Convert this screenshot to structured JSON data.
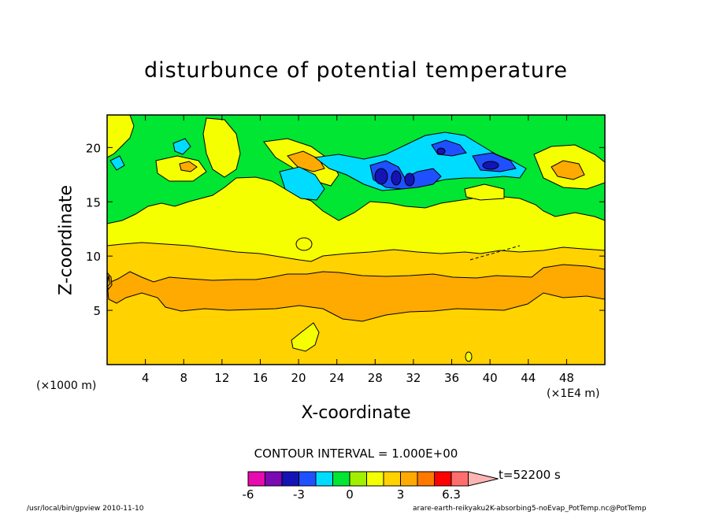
{
  "chart_data": {
    "type": "heatmap",
    "title": "disturbunce of potential temperature",
    "xlabel": "X-coordinate",
    "ylabel": "Z-coordinate",
    "x_unit_left": "(×1000 m)",
    "x_unit_right": "(×1E4 m)",
    "xlim": [
      0,
      52
    ],
    "ylim": [
      0,
      23
    ],
    "x_ticks": [
      4,
      8,
      12,
      16,
      20,
      24,
      28,
      32,
      36,
      40,
      44,
      48
    ],
    "y_ticks": [
      5,
      10,
      15,
      20
    ],
    "contour_interval": "CONTOUR INTERVAL = 1.000E+00",
    "time_label": "t=52200 s",
    "colorbar": {
      "labels": [
        "-6",
        "-3",
        "0",
        "3",
        "6.3"
      ],
      "colors": [
        "#e60aaf",
        "#7a0ab4",
        "#1414b4",
        "#1e50ff",
        "#00dcff",
        "#00e632",
        "#a0f000",
        "#f5ff00",
        "#ffd200",
        "#ffaa00",
        "#ff7800",
        "#ff0000",
        "#ff6e6e",
        "#ffb4b4"
      ]
    },
    "layers": [
      {
        "name": "background",
        "color": "#ffd200"
      },
      {
        "name": "orange band",
        "color": "#ffaa00"
      },
      {
        "name": "yellow band",
        "color": "#f5ff00"
      },
      {
        "name": "green upper",
        "color": "#00e632"
      },
      {
        "name": "cyan blobs",
        "color": "#00dcff"
      },
      {
        "name": "blue blobs",
        "color": "#1e50ff"
      },
      {
        "name": "dark blue blobs",
        "color": "#1414b4"
      }
    ],
    "grid": false
  },
  "footer": {
    "left": "/usr/local/bin/gpview  2010-11-10",
    "right": "arare-earth-reikyaku2K-absorbing5-noEvap_PotTemp.nc@PotTemp"
  }
}
